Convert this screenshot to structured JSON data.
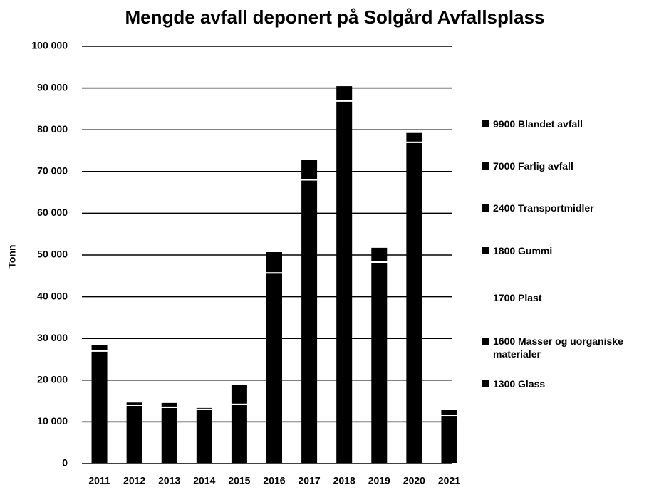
{
  "chart_data": {
    "type": "stacked-bar",
    "title": "Mengde avfall deponert på Solgård Avfallsplass",
    "ylabel": "Tonn",
    "categories": [
      "2011",
      "2012",
      "2013",
      "2014",
      "2015",
      "2016",
      "2017",
      "2018",
      "2019",
      "2020",
      "2021"
    ],
    "series": [
      {
        "name": "1300 Glass",
        "color": "#000000",
        "values": [
          0,
          0,
          0,
          0,
          0,
          0,
          0,
          0,
          0,
          0,
          0
        ]
      },
      {
        "name": "1600 Masser og uorganiske materialer",
        "color": "#000000",
        "values": [
          27000,
          14000,
          13500,
          13000,
          14200,
          45700,
          68000,
          86900,
          48300,
          77000,
          11600
        ]
      },
      {
        "name": "1700 Plast",
        "color": "#ffffff",
        "values": [
          0,
          0,
          0,
          0,
          0,
          0,
          0,
          0,
          0,
          0,
          0
        ]
      },
      {
        "name": "1800 Gummi",
        "color": "#000000",
        "values": [
          0,
          0,
          0,
          0,
          0,
          0,
          0,
          0,
          0,
          0,
          0
        ]
      },
      {
        "name": "2400 Transportmidler",
        "color": "#000000",
        "values": [
          0,
          0,
          0,
          0,
          0,
          0,
          0,
          0,
          0,
          0,
          0
        ]
      },
      {
        "name": "7000 Farlig avfall",
        "color": "#000000",
        "values": [
          0,
          0,
          0,
          0,
          0,
          0,
          0,
          0,
          0,
          0,
          0
        ]
      },
      {
        "name": "9900 Blandet avfall",
        "color": "#000000",
        "values": [
          1500,
          800,
          1200,
          500,
          4900,
          5150,
          5000,
          3700,
          3600,
          2400,
          1500
        ]
      }
    ],
    "ylim": [
      0,
      100000
    ],
    "yticks": [
      0,
      {
        "value": 10000,
        "label": "10 000"
      },
      {
        "value": 20000,
        "label": "20 000"
      },
      {
        "value": 30000,
        "label": "30 000"
      },
      {
        "value": 40000,
        "label": "40 000"
      },
      {
        "value": 50000,
        "label": "50 000"
      },
      {
        "value": 60000,
        "label": "60 000"
      },
      {
        "value": 70000,
        "label": "70 000"
      },
      {
        "value": 80000,
        "label": "80 000"
      },
      {
        "value": 90000,
        "label": "90 000"
      },
      {
        "value": 100000,
        "label": "100 000"
      }
    ],
    "grid": true,
    "legend": "right"
  }
}
